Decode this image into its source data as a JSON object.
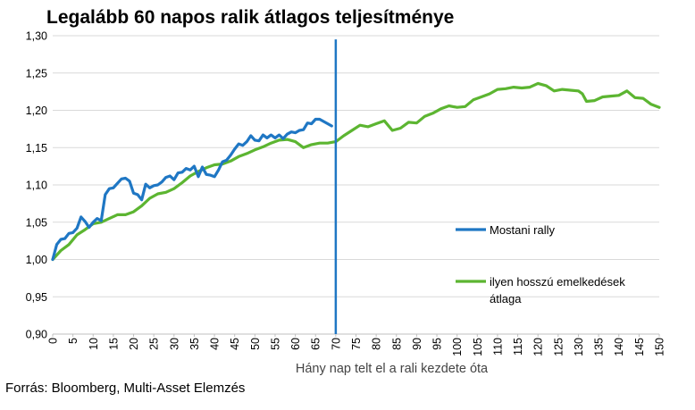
{
  "chart_data": {
    "type": "line",
    "title": "Legalább 60 napos ralik átlagos teljesítménye",
    "xlabel": "Hány nap telt el a rali kezdete óta",
    "ylabel": "",
    "source": "Forrás: Bloomberg, Multi-Asset Elemzés",
    "xlim": [
      0,
      150
    ],
    "ylim": [
      0.9,
      1.3
    ],
    "y_ticks": [
      "0,90",
      "0,95",
      "1,00",
      "1,05",
      "1,10",
      "1,15",
      "1,20",
      "1,25",
      "1,30"
    ],
    "y_tick_values": [
      0.9,
      0.95,
      1.0,
      1.05,
      1.1,
      1.15,
      1.2,
      1.25,
      1.3
    ],
    "x_ticks": [
      "0",
      "5",
      "10",
      "15",
      "20",
      "25",
      "30",
      "35",
      "40",
      "45",
      "50",
      "55",
      "60",
      "65",
      "70",
      "75",
      "80",
      "85",
      "90",
      "95",
      "100",
      "105",
      "110",
      "115",
      "120",
      "125",
      "130",
      "135",
      "140",
      "145",
      "150"
    ],
    "x_tick_values": [
      0,
      5,
      10,
      15,
      20,
      25,
      30,
      35,
      40,
      45,
      50,
      55,
      60,
      65,
      70,
      75,
      80,
      85,
      90,
      95,
      100,
      105,
      110,
      115,
      120,
      125,
      130,
      135,
      140,
      145,
      150
    ],
    "grid": true,
    "vertical_marker": {
      "x": 70,
      "color": "#1f77c4"
    },
    "series": [
      {
        "name": "Mostani rally",
        "color": "#1f77c4",
        "x": [
          0,
          1,
          2,
          3,
          4,
          5,
          6,
          7,
          8,
          9,
          10,
          11,
          12,
          13,
          14,
          15,
          16,
          17,
          18,
          19,
          20,
          21,
          22,
          23,
          24,
          25,
          26,
          27,
          28,
          29,
          30,
          31,
          32,
          33,
          34,
          35,
          36,
          37,
          38,
          39,
          40,
          41,
          42,
          43,
          44,
          45,
          46,
          47,
          48,
          49,
          50,
          51,
          52,
          53,
          54,
          55,
          56,
          57,
          58,
          59,
          60,
          61,
          62,
          63,
          64,
          65,
          66,
          67,
          68,
          69
        ],
        "values": [
          1.0,
          1.02,
          1.027,
          1.028,
          1.035,
          1.036,
          1.042,
          1.057,
          1.051,
          1.043,
          1.05,
          1.055,
          1.052,
          1.087,
          1.095,
          1.096,
          1.102,
          1.108,
          1.109,
          1.105,
          1.089,
          1.087,
          1.08,
          1.101,
          1.096,
          1.099,
          1.1,
          1.104,
          1.11,
          1.112,
          1.107,
          1.116,
          1.117,
          1.122,
          1.12,
          1.125,
          1.111,
          1.124,
          1.114,
          1.113,
          1.111,
          1.12,
          1.131,
          1.133,
          1.14,
          1.148,
          1.155,
          1.153,
          1.158,
          1.166,
          1.16,
          1.159,
          1.167,
          1.163,
          1.167,
          1.163,
          1.167,
          1.162,
          1.168,
          1.171,
          1.17,
          1.173,
          1.174,
          1.183,
          1.182,
          1.188,
          1.188,
          1.185,
          1.182,
          1.179
        ]
      },
      {
        "name": "ilyen hosszú emelkedések átlaga",
        "color": "#5cb531",
        "x": [
          0,
          2,
          4,
          6,
          8,
          10,
          12,
          14,
          16,
          18,
          20,
          22,
          24,
          26,
          28,
          30,
          32,
          34,
          36,
          38,
          40,
          42,
          44,
          46,
          48,
          50,
          52,
          54,
          56,
          58,
          60,
          62,
          64,
          66,
          68,
          70,
          72,
          74,
          76,
          78,
          80,
          82,
          84,
          86,
          88,
          90,
          92,
          94,
          96,
          98,
          100,
          102,
          104,
          106,
          108,
          110,
          112,
          114,
          116,
          118,
          120,
          122,
          124,
          126,
          128,
          130,
          131,
          132,
          134,
          136,
          138,
          140,
          142,
          144,
          146,
          148,
          150
        ],
        "values": [
          1.0,
          1.012,
          1.02,
          1.033,
          1.04,
          1.048,
          1.05,
          1.055,
          1.06,
          1.06,
          1.064,
          1.072,
          1.082,
          1.088,
          1.09,
          1.095,
          1.103,
          1.112,
          1.118,
          1.123,
          1.127,
          1.128,
          1.132,
          1.138,
          1.142,
          1.147,
          1.151,
          1.156,
          1.16,
          1.161,
          1.158,
          1.15,
          1.154,
          1.156,
          1.156,
          1.158,
          1.166,
          1.173,
          1.18,
          1.178,
          1.182,
          1.186,
          1.173,
          1.176,
          1.184,
          1.183,
          1.192,
          1.196,
          1.202,
          1.206,
          1.204,
          1.205,
          1.214,
          1.218,
          1.222,
          1.228,
          1.229,
          1.231,
          1.23,
          1.231,
          1.236,
          1.233,
          1.226,
          1.228,
          1.227,
          1.226,
          1.222,
          1.212,
          1.213,
          1.218,
          1.219,
          1.22,
          1.226,
          1.217,
          1.216,
          1.208,
          1.204
        ]
      }
    ],
    "legend": {
      "placement": "right",
      "entries": [
        "Mostani rally",
        "ilyen hosszú emelkedések átlaga"
      ]
    }
  }
}
